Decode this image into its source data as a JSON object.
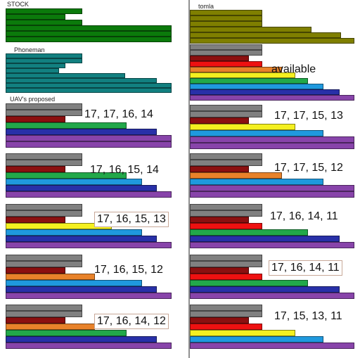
{
  "colors": {
    "green": "#0b7a0b",
    "teal": "#128080",
    "olive": "#7f7f00",
    "gray": "#808080",
    "darkred": "#8b1010",
    "red": "#ee1111",
    "orange": "#e8822a",
    "yellow": "#f4f020",
    "emerald": "#22a84a",
    "sky": "#1f99de",
    "navy": "#2830a8",
    "purple": "#8844aa"
  },
  "divider_present": true,
  "panels": [
    {
      "id": "stock",
      "label": "STOCK",
      "text_style": "small",
      "boxed": false,
      "bars": [
        {
          "color": "green",
          "value": 0.46
        },
        {
          "color": "green",
          "value": 0.36
        },
        {
          "color": "green",
          "value": 0.46
        },
        {
          "color": "green",
          "value": 1.0
        },
        {
          "color": "green",
          "value": 1.0
        },
        {
          "color": "green",
          "value": 1.0
        }
      ]
    },
    {
      "id": "tomla",
      "label": "tomla",
      "text_style": "small",
      "boxed": false,
      "bars": [
        {
          "color": "olive",
          "value": 0.44
        },
        {
          "color": "olive",
          "value": 0.44
        },
        {
          "color": "olive",
          "value": 0.44
        },
        {
          "color": "olive",
          "value": 0.74
        },
        {
          "color": "olive",
          "value": 0.92
        },
        {
          "color": "olive",
          "value": 1.0
        }
      ]
    },
    {
      "id": "phoneman",
      "label": "Phoneman",
      "text_style": "small",
      "boxed": false,
      "bars": [
        {
          "color": "teal",
          "value": 0.46
        },
        {
          "color": "teal",
          "value": 0.46
        },
        {
          "color": "teal",
          "value": 0.36
        },
        {
          "color": "teal",
          "value": 0.32
        },
        {
          "color": "teal",
          "value": 0.72
        },
        {
          "color": "teal",
          "value": 0.91
        },
        {
          "color": "teal",
          "value": 1.0
        },
        {
          "color": "teal",
          "value": 1.0
        }
      ]
    },
    {
      "id": "available",
      "label": "available",
      "text_style": "big",
      "boxed": false,
      "bars": [
        {
          "color": "gray",
          "value": 0.44
        },
        {
          "color": "gray",
          "value": 0.44
        },
        {
          "color": "darkred",
          "value": 0.36
        },
        {
          "color": "red",
          "value": 0.44
        },
        {
          "color": "orange",
          "value": 0.56
        },
        {
          "color": "yellow",
          "value": 0.64
        },
        {
          "color": "emerald",
          "value": 0.72
        },
        {
          "color": "sky",
          "value": 0.81
        },
        {
          "color": "navy",
          "value": 0.91
        },
        {
          "color": "purple",
          "value": 1.0
        }
      ]
    },
    {
      "id": "l1",
      "label": "17, 17, 16, 14",
      "caption": "UAV's proposed",
      "text_style": "big",
      "boxed": false,
      "bars": [
        {
          "color": "gray",
          "value": 0.46
        },
        {
          "color": "gray",
          "value": 0.46
        },
        {
          "color": "darkred",
          "value": 0.36
        },
        {
          "color": "emerald",
          "value": 0.73
        },
        {
          "color": "navy",
          "value": 0.91
        },
        {
          "color": "purple",
          "value": 1.0
        },
        {
          "color": "purple",
          "value": 1.0
        }
      ]
    },
    {
      "id": "r1",
      "label": "17, 17, 15, 13",
      "text_style": "big",
      "boxed": false,
      "bars": [
        {
          "color": "gray",
          "value": 0.44
        },
        {
          "color": "gray",
          "value": 0.44
        },
        {
          "color": "darkred",
          "value": 0.36
        },
        {
          "color": "yellow",
          "value": 0.64
        },
        {
          "color": "sky",
          "value": 0.81
        },
        {
          "color": "purple",
          "value": 1.0
        },
        {
          "color": "purple",
          "value": 1.0
        }
      ]
    },
    {
      "id": "l2",
      "label": "17, 16, 15, 14",
      "text_style": "big",
      "boxed": false,
      "bars": [
        {
          "color": "gray",
          "value": 0.46
        },
        {
          "color": "gray",
          "value": 0.46
        },
        {
          "color": "darkred",
          "value": 0.36
        },
        {
          "color": "emerald",
          "value": 0.73
        },
        {
          "color": "sky",
          "value": 0.82
        },
        {
          "color": "navy",
          "value": 0.91
        },
        {
          "color": "purple",
          "value": 1.0
        }
      ]
    },
    {
      "id": "r2",
      "label": "17, 17, 15, 12",
      "text_style": "big",
      "boxed": false,
      "bars": [
        {
          "color": "gray",
          "value": 0.44
        },
        {
          "color": "gray",
          "value": 0.44
        },
        {
          "color": "darkred",
          "value": 0.36
        },
        {
          "color": "orange",
          "value": 0.56
        },
        {
          "color": "sky",
          "value": 0.81
        },
        {
          "color": "purple",
          "value": 1.0
        },
        {
          "color": "purple",
          "value": 1.0
        }
      ]
    },
    {
      "id": "l3",
      "label": "17, 16, 15, 13",
      "text_style": "big",
      "boxed": true,
      "bars": [
        {
          "color": "gray",
          "value": 0.46
        },
        {
          "color": "gray",
          "value": 0.46
        },
        {
          "color": "darkred",
          "value": 0.36
        },
        {
          "color": "yellow",
          "value": 0.64
        },
        {
          "color": "sky",
          "value": 0.82
        },
        {
          "color": "navy",
          "value": 0.91
        },
        {
          "color": "purple",
          "value": 1.0
        }
      ]
    },
    {
      "id": "r3",
      "label": "17, 16, 14, 11",
      "text_style": "big",
      "boxed": false,
      "bars": [
        {
          "color": "gray",
          "value": 0.44
        },
        {
          "color": "gray",
          "value": 0.44
        },
        {
          "color": "darkred",
          "value": 0.36
        },
        {
          "color": "red",
          "value": 0.44
        },
        {
          "color": "emerald",
          "value": 0.72
        },
        {
          "color": "navy",
          "value": 0.91
        },
        {
          "color": "purple",
          "value": 1.0
        }
      ]
    },
    {
      "id": "l4",
      "label": "17, 16, 15, 12",
      "text_style": "big",
      "boxed": false,
      "bars": [
        {
          "color": "gray",
          "value": 0.46
        },
        {
          "color": "gray",
          "value": 0.46
        },
        {
          "color": "darkred",
          "value": 0.36
        },
        {
          "color": "orange",
          "value": 0.54
        },
        {
          "color": "sky",
          "value": 0.82
        },
        {
          "color": "navy",
          "value": 0.91
        },
        {
          "color": "purple",
          "value": 1.0
        }
      ]
    },
    {
      "id": "r4",
      "label": "17, 16, 14, 11",
      "text_style": "big",
      "boxed": true,
      "bars": [
        {
          "color": "gray",
          "value": 0.44
        },
        {
          "color": "gray",
          "value": 0.44
        },
        {
          "color": "darkred",
          "value": 0.36
        },
        {
          "color": "red",
          "value": 0.44
        },
        {
          "color": "emerald",
          "value": 0.72
        },
        {
          "color": "navy",
          "value": 0.91
        },
        {
          "color": "purple",
          "value": 1.0
        }
      ]
    },
    {
      "id": "l5",
      "label": "17, 16, 14, 12",
      "text_style": "big",
      "boxed": true,
      "bars": [
        {
          "color": "gray",
          "value": 0.46
        },
        {
          "color": "gray",
          "value": 0.46
        },
        {
          "color": "darkred",
          "value": 0.36
        },
        {
          "color": "orange",
          "value": 0.54
        },
        {
          "color": "emerald",
          "value": 0.73
        },
        {
          "color": "navy",
          "value": 0.91
        },
        {
          "color": "purple",
          "value": 1.0
        }
      ]
    },
    {
      "id": "r5",
      "label": "17, 15, 13, 11",
      "text_style": "big",
      "boxed": false,
      "bars": [
        {
          "color": "gray",
          "value": 0.44
        },
        {
          "color": "gray",
          "value": 0.44
        },
        {
          "color": "darkred",
          "value": 0.36
        },
        {
          "color": "red",
          "value": 0.44
        },
        {
          "color": "yellow",
          "value": 0.64
        },
        {
          "color": "sky",
          "value": 0.81
        },
        {
          "color": "purple",
          "value": 1.0
        }
      ]
    }
  ]
}
